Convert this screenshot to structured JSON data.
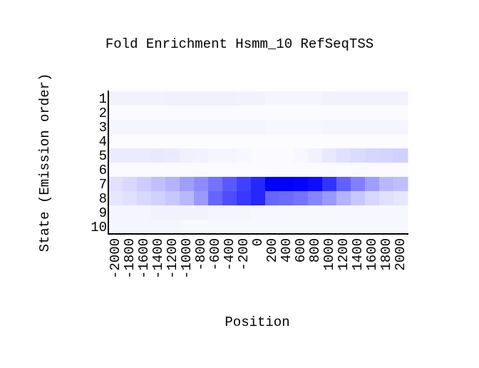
{
  "chart_data": {
    "type": "heatmap",
    "title": "Fold Enrichment Hsmm_10 RefSeqTSS",
    "x_label": "Position",
    "y_label": "State (Emission order)",
    "x": [
      -2000,
      -1800,
      -1600,
      -1400,
      -1200,
      -1000,
      -800,
      -600,
      -400,
      -200,
      0,
      200,
      400,
      600,
      800,
      1000,
      1200,
      1400,
      1600,
      1800,
      2000
    ],
    "y_categories": [
      "1",
      "2",
      "3",
      "4",
      "5",
      "6",
      "7",
      "8",
      "9",
      "10"
    ],
    "color": "#0000ff",
    "values": [
      [
        5,
        5,
        5,
        5,
        6,
        6,
        6,
        6,
        6,
        5,
        5,
        4,
        4,
        4,
        4,
        5,
        5,
        5,
        5,
        5,
        5
      ],
      [
        2,
        2,
        2,
        2,
        2,
        2,
        2,
        2,
        2,
        2,
        2,
        2,
        2,
        2,
        2,
        2,
        2,
        2,
        2,
        2,
        2
      ],
      [
        4,
        4,
        4,
        4,
        4,
        4,
        4,
        4,
        4,
        4,
        4,
        3,
        3,
        3,
        3,
        4,
        4,
        4,
        4,
        4,
        4
      ],
      [
        1,
        1,
        1,
        1,
        1,
        1,
        1,
        1,
        1,
        1,
        1,
        1,
        1,
        1,
        1,
        1,
        1,
        1,
        1,
        1,
        1
      ],
      [
        8,
        8,
        8,
        9,
        8,
        6,
        5,
        4,
        4,
        3,
        2,
        2,
        2,
        3,
        5,
        9,
        12,
        14,
        16,
        17,
        18
      ],
      [
        2,
        2,
        2,
        2,
        2,
        2,
        2,
        2,
        2,
        2,
        2,
        2,
        2,
        2,
        2,
        2,
        2,
        2,
        2,
        2,
        2
      ],
      [
        12,
        15,
        20,
        25,
        30,
        38,
        45,
        55,
        65,
        75,
        85,
        100,
        100,
        98,
        95,
        80,
        62,
        50,
        38,
        28,
        25
      ],
      [
        10,
        12,
        15,
        18,
        22,
        28,
        40,
        60,
        70,
        78,
        85,
        60,
        58,
        55,
        48,
        40,
        30,
        22,
        16,
        12,
        10
      ],
      [
        4,
        4,
        4,
        5,
        5,
        5,
        5,
        4,
        4,
        4,
        3,
        3,
        3,
        3,
        3,
        3,
        3,
        3,
        3,
        3,
        3
      ],
      [
        4,
        4,
        4,
        4,
        4,
        3,
        3,
        3,
        3,
        3,
        3,
        3,
        3,
        3,
        3,
        3,
        3,
        3,
        3,
        3,
        3
      ]
    ]
  }
}
